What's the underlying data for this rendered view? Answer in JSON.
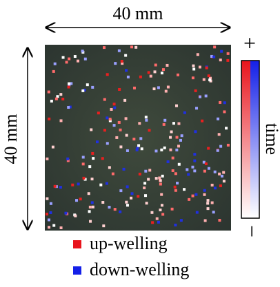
{
  "scale": {
    "width_label": "40 mm",
    "height_label": "40 mm"
  },
  "colorbar": {
    "label": "time",
    "top": "+",
    "bottom": "−"
  },
  "legend": [
    {
      "label": "up-welling",
      "color": "#e8141c"
    },
    {
      "label": "down-welling",
      "color": "#1420e8"
    }
  ]
}
